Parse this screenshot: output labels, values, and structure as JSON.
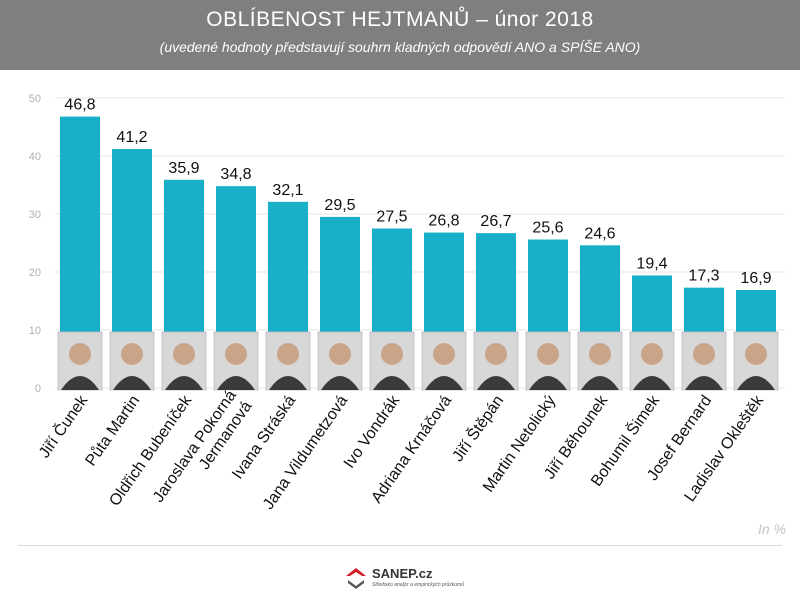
{
  "header": {
    "title": "OBLÍBENOST HEJTMANŮ – únor 2018",
    "subtitle": "(uvedené hodnoty představují souhrn kladných odpovědí ANO a SPÍŠE ANO)"
  },
  "unit_label": "In %",
  "logo": {
    "name": "SANEP.cz",
    "tagline": "Středisko analýz a empirických průzkumů"
  },
  "colors": {
    "bar": "#17b0c8",
    "header_bg": "#7f7f7f",
    "gridline": "#e6e6e6",
    "axis_text": "#b0b0b0",
    "logo_red": "#d32027"
  },
  "chart_data": {
    "type": "bar",
    "categories": [
      "Jiří Čunek",
      "Půta Martin",
      "Oldřich Bubeníček",
      "Jaroslava Pokorná Jermanová",
      "Ivana Stráská",
      "Jana Vildumetzová",
      "Ivo Vondrák",
      "Adriana Krnáčová",
      "Jiří Štěpán",
      "Martin Netolický",
      "Jiří Běhounek",
      "Bohumil Šimek",
      "Josef Bernard",
      "Ladislav Okleštěk"
    ],
    "category_lines": [
      [
        "Jiří Čunek"
      ],
      [
        "Půta Martin"
      ],
      [
        "Oldřich Bubeníček"
      ],
      [
        "Jaroslava Pokorná",
        "Jermanová"
      ],
      [
        "Ivana Stráská"
      ],
      [
        "Jana Vildumetzová"
      ],
      [
        "Ivo Vondrák"
      ],
      [
        "Adriana Krnáčová"
      ],
      [
        "Jiří Štěpán"
      ],
      [
        "Martin Netolický"
      ],
      [
        "Jiří Běhounek"
      ],
      [
        "Bohumil Šimek"
      ],
      [
        "Josef Bernard"
      ],
      [
        "Ladislav Okleštěk"
      ]
    ],
    "values": [
      46.8,
      41.2,
      35.9,
      34.8,
      32.1,
      29.5,
      27.5,
      26.8,
      26.7,
      25.6,
      24.6,
      19.4,
      17.3,
      16.9
    ],
    "value_labels": [
      "46,8",
      "41,2",
      "35,9",
      "34,8",
      "32,1",
      "29,5",
      "27,5",
      "26,8",
      "26,7",
      "25,6",
      "24,6",
      "19,4",
      "17,3",
      "16,9"
    ],
    "yticks": [
      0,
      10,
      20,
      30,
      40,
      50
    ],
    "ylim": [
      0,
      50
    ],
    "grid": true,
    "legend": "none"
  }
}
